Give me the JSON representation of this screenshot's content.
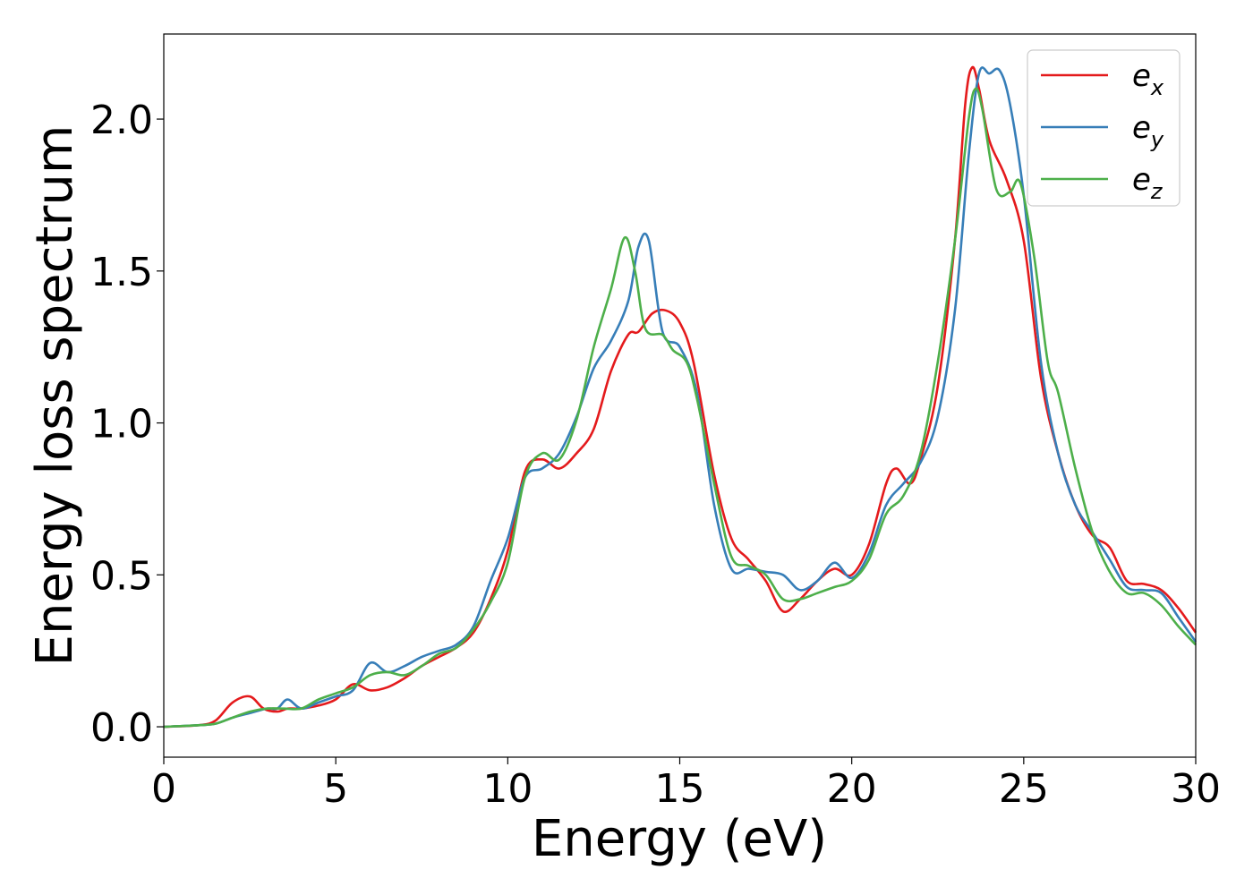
{
  "chart_data": {
    "type": "line",
    "title": "",
    "xlabel": "Energy (eV)",
    "ylabel": "Energy loss spectrum",
    "xlim": [
      0,
      30
    ],
    "ylim": [
      -0.1,
      2.28
    ],
    "xticks": [
      0,
      5,
      10,
      15,
      20,
      25,
      30
    ],
    "xtick_labels": [
      "0",
      "5",
      "10",
      "15",
      "20",
      "25",
      "30"
    ],
    "yticks": [
      0.0,
      0.5,
      1.0,
      1.5,
      2.0
    ],
    "ytick_labels": [
      "0.0",
      "0.5",
      "1.0",
      "1.5",
      "2.0"
    ],
    "grid": false,
    "legend_position": "top-right",
    "series": [
      {
        "name": "e_x",
        "legend_base": "e",
        "legend_sub": "x",
        "color": "#e41a1c",
        "x": [
          0,
          1,
          1.5,
          2.0,
          2.5,
          2.9,
          3.3,
          3.6,
          4.0,
          4.5,
          5.0,
          5.5,
          6.0,
          6.5,
          7.0,
          7.5,
          8.0,
          8.5,
          9.0,
          9.5,
          10.0,
          10.5,
          11.0,
          11.5,
          12.0,
          12.5,
          13.0,
          13.5,
          13.8,
          14.2,
          14.6,
          15.0,
          15.4,
          16.0,
          16.5,
          17.0,
          17.5,
          18.0,
          18.5,
          19.0,
          19.5,
          20.0,
          20.5,
          21.0,
          21.3,
          21.7,
          22.0,
          22.5,
          23.0,
          23.3,
          23.5,
          23.7,
          24.0,
          24.5,
          25.0,
          25.5,
          26.0,
          26.5,
          27.0,
          27.5,
          28.0,
          28.5,
          29.0,
          29.5,
          30.0
        ],
        "y": [
          0.0,
          0.005,
          0.02,
          0.08,
          0.1,
          0.06,
          0.05,
          0.06,
          0.06,
          0.07,
          0.09,
          0.14,
          0.12,
          0.13,
          0.16,
          0.2,
          0.23,
          0.26,
          0.31,
          0.42,
          0.58,
          0.84,
          0.88,
          0.85,
          0.9,
          0.98,
          1.17,
          1.29,
          1.3,
          1.36,
          1.37,
          1.33,
          1.2,
          0.83,
          0.62,
          0.55,
          0.48,
          0.38,
          0.42,
          0.48,
          0.52,
          0.5,
          0.6,
          0.8,
          0.85,
          0.8,
          0.88,
          1.12,
          1.6,
          2.05,
          2.17,
          2.1,
          1.93,
          1.8,
          1.6,
          1.15,
          0.9,
          0.73,
          0.63,
          0.59,
          0.48,
          0.47,
          0.45,
          0.39,
          0.31
        ]
      },
      {
        "name": "e_y",
        "legend_base": "e",
        "legend_sub": "y",
        "color": "#377eb8",
        "x": [
          0,
          1,
          1.5,
          2.0,
          2.5,
          3.0,
          3.3,
          3.6,
          4.0,
          4.5,
          5.0,
          5.5,
          6.0,
          6.5,
          7.0,
          7.5,
          8.0,
          8.5,
          9.0,
          9.5,
          10.0,
          10.5,
          11.0,
          11.5,
          12.0,
          12.5,
          13.0,
          13.5,
          13.8,
          14.1,
          14.5,
          15.0,
          15.5,
          16.0,
          16.5,
          17.0,
          17.5,
          18.0,
          18.5,
          19.0,
          19.5,
          20.0,
          20.5,
          21.0,
          21.5,
          22.0,
          22.5,
          23.0,
          23.4,
          23.7,
          24.0,
          24.3,
          24.6,
          25.0,
          25.5,
          26.0,
          26.5,
          27.0,
          27.5,
          28.0,
          28.5,
          29.0,
          29.5,
          30.0
        ],
        "y": [
          0.0,
          0.005,
          0.01,
          0.03,
          0.045,
          0.06,
          0.06,
          0.09,
          0.06,
          0.08,
          0.1,
          0.12,
          0.21,
          0.18,
          0.2,
          0.23,
          0.25,
          0.27,
          0.33,
          0.48,
          0.62,
          0.82,
          0.85,
          0.9,
          1.02,
          1.18,
          1.27,
          1.4,
          1.58,
          1.6,
          1.3,
          1.25,
          1.1,
          0.73,
          0.52,
          0.52,
          0.51,
          0.5,
          0.45,
          0.48,
          0.54,
          0.49,
          0.57,
          0.73,
          0.8,
          0.87,
          1.02,
          1.37,
          1.88,
          2.15,
          2.15,
          2.16,
          2.05,
          1.75,
          1.2,
          0.9,
          0.73,
          0.64,
          0.55,
          0.46,
          0.45,
          0.44,
          0.36,
          0.28
        ]
      },
      {
        "name": "e_z",
        "legend_base": "e",
        "legend_sub": "z",
        "color": "#4daf4a",
        "x": [
          0,
          1,
          1.5,
          2.0,
          2.5,
          3.0,
          3.5,
          4.0,
          4.5,
          5.0,
          5.5,
          6.0,
          6.5,
          7.0,
          7.5,
          8.0,
          8.5,
          9.0,
          9.5,
          10.0,
          10.5,
          11.0,
          11.5,
          12.0,
          12.5,
          13.0,
          13.4,
          13.7,
          14.0,
          14.5,
          14.8,
          15.2,
          15.5,
          16.0,
          16.5,
          17.0,
          17.5,
          18.0,
          18.5,
          19.0,
          19.5,
          20.0,
          20.5,
          21.0,
          21.5,
          22.0,
          22.5,
          23.0,
          23.4,
          23.6,
          23.8,
          24.2,
          24.6,
          24.9,
          25.3,
          25.7,
          26.0,
          26.5,
          27.0,
          27.5,
          28.0,
          28.5,
          29.0,
          29.5,
          30.0
        ],
        "y": [
          0.0,
          0.005,
          0.01,
          0.03,
          0.05,
          0.06,
          0.06,
          0.06,
          0.09,
          0.11,
          0.13,
          0.17,
          0.18,
          0.17,
          0.2,
          0.24,
          0.26,
          0.32,
          0.41,
          0.54,
          0.82,
          0.9,
          0.88,
          1.01,
          1.25,
          1.44,
          1.61,
          1.5,
          1.31,
          1.29,
          1.24,
          1.2,
          1.08,
          0.8,
          0.56,
          0.53,
          0.5,
          0.42,
          0.42,
          0.44,
          0.46,
          0.48,
          0.55,
          0.7,
          0.76,
          0.9,
          1.2,
          1.6,
          2.0,
          2.1,
          2.03,
          1.77,
          1.76,
          1.79,
          1.55,
          1.2,
          1.1,
          0.85,
          0.64,
          0.51,
          0.44,
          0.44,
          0.4,
          0.33,
          0.27
        ]
      }
    ]
  }
}
